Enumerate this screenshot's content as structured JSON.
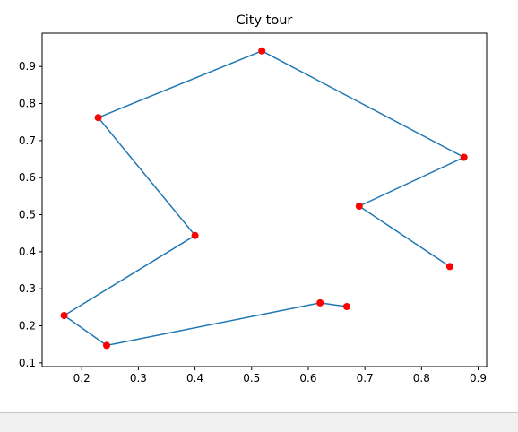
{
  "chart_data": {
    "type": "line",
    "title": "City tour",
    "xlabel": "",
    "ylabel": "",
    "xlim": [
      0.13,
      0.915
    ],
    "ylim": [
      0.09,
      0.99
    ],
    "xticks": [
      0.2,
      0.3,
      0.4,
      0.5,
      0.6,
      0.7,
      0.8,
      0.9
    ],
    "yticks": [
      0.1,
      0.2,
      0.3,
      0.4,
      0.5,
      0.6,
      0.7,
      0.8,
      0.9
    ],
    "grid": false,
    "series": [
      {
        "style": "line",
        "color": "#1f77b4",
        "x": [
          0.668,
          0.621,
          0.244,
          0.169,
          0.4,
          0.229,
          0.518,
          0.875,
          0.69,
          0.85
        ],
        "y": [
          0.252,
          0.262,
          0.147,
          0.228,
          0.444,
          0.762,
          0.942,
          0.655,
          0.523,
          0.36
        ]
      },
      {
        "style": "scatter",
        "color": "#ff0000",
        "x": [
          0.668,
          0.621,
          0.244,
          0.169,
          0.4,
          0.229,
          0.518,
          0.875,
          0.69,
          0.85
        ],
        "y": [
          0.252,
          0.262,
          0.147,
          0.228,
          0.444,
          0.762,
          0.942,
          0.655,
          0.523,
          0.36
        ]
      }
    ]
  }
}
